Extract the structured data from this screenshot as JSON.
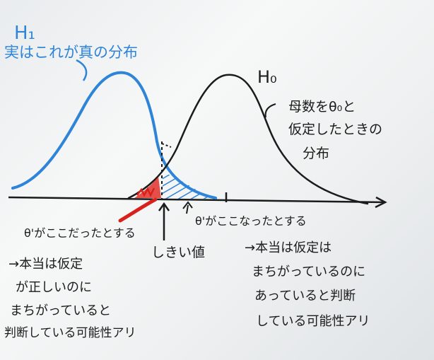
{
  "h1_label": "H₁",
  "h1_caption": "実はこれが真の分布",
  "h0_label": "H₀",
  "h0_caption": [
    "母数をθ₀と",
    "仮定したときの",
    "分布"
  ],
  "theta_left_label": "θ'がここだったとする",
  "threshold_label": "しきい値",
  "theta_right_label": "θ'がここなったとする",
  "left_note": [
    "→本当は仮定",
    "が正しいのに",
    "まちがっていると",
    "判断している可能性アリ"
  ],
  "right_note": [
    "→本当は仮定は",
    "まちがっているのに",
    "あっていると判断",
    "している可能性アリ"
  ],
  "colors": {
    "board": "#eef0f1",
    "ink": "#1b1b1b",
    "h1_curve": "#2d84d8",
    "hatch": "#2d84d8",
    "theta_marker": "#d8201c"
  }
}
